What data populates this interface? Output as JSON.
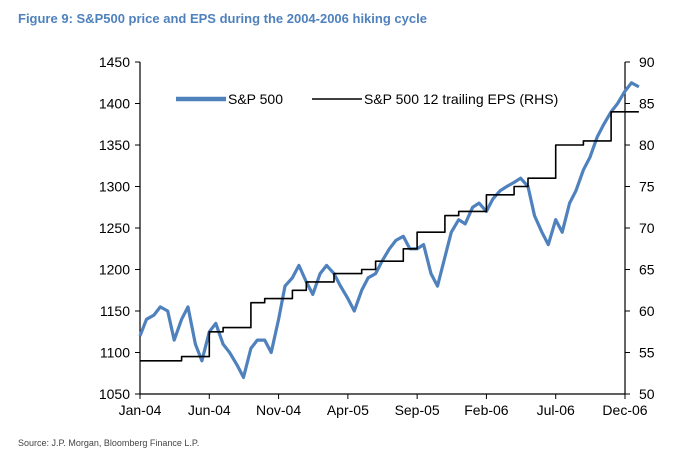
{
  "figure_title": "Figure 9: S&P500 price and EPS during the 2004-2006 hiking cycle",
  "source": "Source: J.P. Morgan, Bloomberg Finance L.P.",
  "colors": {
    "title": "#4f81bd",
    "sp500": "#4f81bd",
    "eps": "#000000"
  },
  "chart_data": {
    "type": "line",
    "title": "Figure 9: S&P500 price and EPS during the 2004-2006 hiking cycle",
    "xlabel": "",
    "ylabel": "",
    "x_ticks": [
      "Jan-04",
      "Jun-04",
      "Nov-04",
      "Apr-05",
      "Sep-05",
      "Feb-06",
      "Jul-06",
      "Dec-06"
    ],
    "x_range": [
      "2004-01",
      "2006-12"
    ],
    "y_left": {
      "ticks": [
        "1050",
        "1100",
        "1150",
        "1200",
        "1250",
        "1300",
        "1350",
        "1400",
        "1450"
      ],
      "ylim": [
        1050,
        1450
      ]
    },
    "y_right": {
      "ticks": [
        "50",
        "55",
        "60",
        "65",
        "70",
        "75",
        "80",
        "85",
        "90"
      ],
      "ylim": [
        50,
        90
      ]
    },
    "grid": false,
    "legend_position": "top",
    "series": [
      {
        "name": "S&P 500",
        "axis": "left",
        "color": "#4f81bd",
        "style": "thick-line",
        "points": [
          [
            "2004-01",
            1120
          ],
          [
            "2004-01-15",
            1140
          ],
          [
            "2004-02",
            1145
          ],
          [
            "2004-02-15",
            1155
          ],
          [
            "2004-03",
            1150
          ],
          [
            "2004-03-15",
            1115
          ],
          [
            "2004-04",
            1140
          ],
          [
            "2004-04-15",
            1155
          ],
          [
            "2004-05",
            1110
          ],
          [
            "2004-05-15",
            1090
          ],
          [
            "2004-06",
            1125
          ],
          [
            "2004-06-15",
            1135
          ],
          [
            "2004-07",
            1110
          ],
          [
            "2004-07-15",
            1100
          ],
          [
            "2004-08",
            1085
          ],
          [
            "2004-08-15",
            1070
          ],
          [
            "2004-09",
            1105
          ],
          [
            "2004-09-15",
            1115
          ],
          [
            "2004-10",
            1115
          ],
          [
            "2004-10-15",
            1100
          ],
          [
            "2004-11",
            1140
          ],
          [
            "2004-11-15",
            1180
          ],
          [
            "2004-12",
            1190
          ],
          [
            "2004-12-15",
            1205
          ],
          [
            "2005-01",
            1185
          ],
          [
            "2005-01-15",
            1170
          ],
          [
            "2005-02",
            1195
          ],
          [
            "2005-02-15",
            1205
          ],
          [
            "2005-03",
            1195
          ],
          [
            "2005-03-15",
            1180
          ],
          [
            "2005-04",
            1165
          ],
          [
            "2005-04-15",
            1150
          ],
          [
            "2005-05",
            1175
          ],
          [
            "2005-05-15",
            1190
          ],
          [
            "2005-06",
            1195
          ],
          [
            "2005-06-15",
            1210
          ],
          [
            "2005-07",
            1225
          ],
          [
            "2005-07-15",
            1235
          ],
          [
            "2005-08",
            1240
          ],
          [
            "2005-08-15",
            1225
          ],
          [
            "2005-09",
            1225
          ],
          [
            "2005-09-15",
            1230
          ],
          [
            "2005-10",
            1195
          ],
          [
            "2005-10-15",
            1180
          ],
          [
            "2005-11",
            1215
          ],
          [
            "2005-11-15",
            1245
          ],
          [
            "2005-12",
            1260
          ],
          [
            "2005-12-15",
            1255
          ],
          [
            "2006-01",
            1275
          ],
          [
            "2006-01-15",
            1280
          ],
          [
            "2006-02",
            1270
          ],
          [
            "2006-02-15",
            1285
          ],
          [
            "2006-03",
            1295
          ],
          [
            "2006-03-15",
            1300
          ],
          [
            "2006-04",
            1305
          ],
          [
            "2006-04-15",
            1310
          ],
          [
            "2006-05",
            1300
          ],
          [
            "2006-05-15",
            1265
          ],
          [
            "2006-06",
            1245
          ],
          [
            "2006-06-15",
            1230
          ],
          [
            "2006-07",
            1260
          ],
          [
            "2006-07-15",
            1245
          ],
          [
            "2006-08",
            1280
          ],
          [
            "2006-08-15",
            1295
          ],
          [
            "2006-09",
            1320
          ],
          [
            "2006-09-15",
            1335
          ],
          [
            "2006-10",
            1360
          ],
          [
            "2006-10-15",
            1375
          ],
          [
            "2006-11",
            1390
          ],
          [
            "2006-11-15",
            1400
          ],
          [
            "2006-12",
            1415
          ],
          [
            "2006-12-15",
            1425
          ],
          [
            "2007-01",
            1420
          ]
        ]
      },
      {
        "name": "S&P 500 12 trailing EPS (RHS)",
        "axis": "right",
        "color": "#000000",
        "style": "step-line",
        "points": [
          [
            "2004-01",
            54.0
          ],
          [
            "2004-04",
            54.5
          ],
          [
            "2004-06",
            57.5
          ],
          [
            "2004-07",
            58.0
          ],
          [
            "2004-09",
            61.0
          ],
          [
            "2004-10",
            61.5
          ],
          [
            "2004-12",
            62.5
          ],
          [
            "2005-01",
            63.5
          ],
          [
            "2005-03",
            64.5
          ],
          [
            "2005-05",
            65.0
          ],
          [
            "2005-06",
            66.0
          ],
          [
            "2005-08",
            67.5
          ],
          [
            "2005-09",
            69.5
          ],
          [
            "2005-11",
            71.5
          ],
          [
            "2005-12",
            72.0
          ],
          [
            "2006-02",
            74.0
          ],
          [
            "2006-04",
            75.0
          ],
          [
            "2006-05",
            76.0
          ],
          [
            "2006-07",
            80.0
          ],
          [
            "2006-09",
            80.5
          ],
          [
            "2006-11",
            84.0
          ],
          [
            "2007-01",
            84.0
          ]
        ]
      }
    ]
  }
}
